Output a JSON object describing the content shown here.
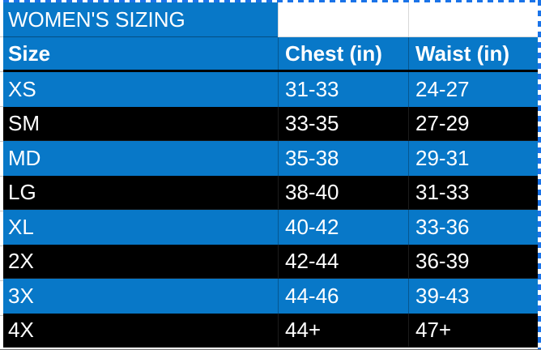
{
  "table": {
    "title": "WOMEN'S SIZING",
    "columns": [
      "Size",
      "Chest (in)",
      "Waist (in)"
    ],
    "rows": [
      {
        "size": "XS",
        "chest": "31-33",
        "waist": "24-27",
        "variant": "blue"
      },
      {
        "size": "SM",
        "chest": "33-35",
        "waist": "27-29",
        "variant": "black"
      },
      {
        "size": "MD",
        "chest": "35-38",
        "waist": "29-31",
        "variant": "blue"
      },
      {
        "size": "LG",
        "chest": "38-40",
        "waist": "31-33",
        "variant": "black"
      },
      {
        "size": "XL",
        "chest": "40-42",
        "waist": "33-36",
        "variant": "blue"
      },
      {
        "size": "2X",
        "chest": "42-44",
        "waist": "36-39",
        "variant": "black"
      },
      {
        "size": "3X",
        "chest": "44-46",
        "waist": "39-43",
        "variant": "blue"
      },
      {
        "size": "4X",
        "chest": "44+",
        "waist": "47+",
        "variant": "black"
      }
    ]
  },
  "colors": {
    "row_blue": "#0878c8",
    "row_black": "#000000",
    "text": "#ffffff",
    "selection_dash_blue": "#1a73e8",
    "gridline_gray": "#c9c9c9",
    "header_divider": "#000000"
  },
  "selection": {
    "state": "copied-range-marquee"
  }
}
